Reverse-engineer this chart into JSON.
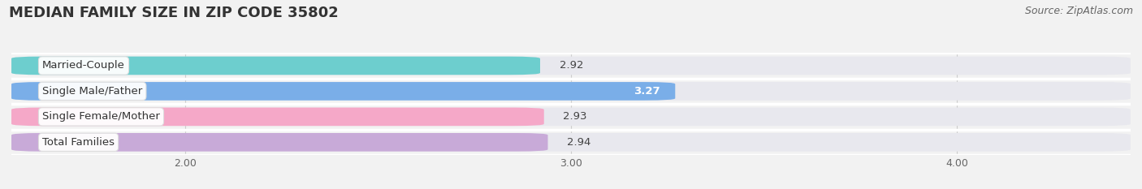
{
  "title": "MEDIAN FAMILY SIZE IN ZIP CODE 35802",
  "source": "Source: ZipAtlas.com",
  "categories": [
    "Married-Couple",
    "Single Male/Father",
    "Single Female/Mother",
    "Total Families"
  ],
  "values": [
    2.92,
    3.27,
    2.93,
    2.94
  ],
  "bar_colors": [
    "#6dcece",
    "#7aaee8",
    "#f5a8c8",
    "#c8aad8"
  ],
  "bar_bg_color": "#e8e8ee",
  "label_bg_color": "#ffffff",
  "xlim": [
    1.55,
    4.45
  ],
  "xmin": 1.55,
  "xmax": 4.45,
  "xticks": [
    2.0,
    3.0,
    4.0
  ],
  "xtick_labels": [
    "2.00",
    "3.00",
    "4.00"
  ],
  "bar_height": 0.72,
  "background_color": "#f2f2f2",
  "plot_bg_color": "#f2f2f2",
  "title_fontsize": 13,
  "source_fontsize": 9,
  "label_fontsize": 9.5,
  "value_fontsize": 9.5,
  "row_sep_color": "#ffffff",
  "grid_color": "#cccccc"
}
